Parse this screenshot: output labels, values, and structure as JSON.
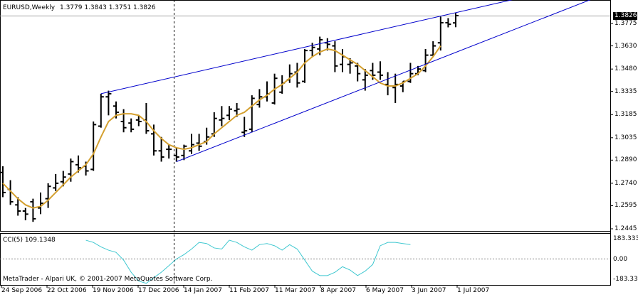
{
  "header": {
    "symbol_timeframe": "EURUSD,Weekly",
    "ohlc": "1.3779 1.3843 1.3751 1.3826"
  },
  "price_axis": {
    "last_price": "1.3826",
    "ticks": [
      "1.3775",
      "1.3630",
      "1.3480",
      "1.3335",
      "1.3185",
      "1.3035",
      "1.2890",
      "1.2740",
      "1.2595",
      "1.2445"
    ]
  },
  "indicator": {
    "label": "CCI(5) 109.1348",
    "ticks": [
      "183.333",
      "0.00",
      "-183.333"
    ]
  },
  "copyright": "MetaTrader - Alpari UK, © 2001-2007 MetaQuotes Software Corp.",
  "time_axis": {
    "labels": [
      "24 Sep 2006",
      "22 Oct 2006",
      "19 Nov 2006",
      "17 Dec 2006",
      "14 Jan 2007",
      "11 Feb 2007",
      "11 Mar 2007",
      "8 Apr 2007",
      "6 May 2007",
      "3 Jun 2007",
      "1 Jul 2007"
    ]
  },
  "colors": {
    "bars": "#000000",
    "moving_average": "#d4a030",
    "trendlines": "#0000cc",
    "cci_line": "#40c8d0",
    "grid_dash": "#808080"
  },
  "chart_data": {
    "type": "ohlc",
    "series": [
      {
        "values": [
          [
            1.281,
            1.285,
            1.265,
            1.268
          ],
          [
            1.27,
            1.276,
            1.26,
            1.262
          ],
          [
            1.26,
            1.265,
            1.253,
            1.256
          ],
          [
            1.256,
            1.258,
            1.25,
            1.254
          ],
          [
            1.262,
            1.264,
            1.249,
            1.251
          ],
          [
            1.258,
            1.268,
            1.254,
            1.261
          ],
          [
            1.264,
            1.274,
            1.258,
            1.272
          ],
          [
            1.271,
            1.28,
            1.269,
            1.274
          ],
          [
            1.275,
            1.282,
            1.272,
            1.278
          ],
          [
            1.28,
            1.29,
            1.275,
            1.288
          ],
          [
            1.286,
            1.292,
            1.281,
            1.284
          ],
          [
            1.285,
            1.288,
            1.279,
            1.282
          ],
          [
            1.283,
            1.314,
            1.282,
            1.312
          ],
          [
            1.311,
            1.332,
            1.31,
            1.33
          ],
          [
            1.33,
            1.334,
            1.318,
            1.332
          ],
          [
            1.324,
            1.327,
            1.316,
            1.32
          ],
          [
            1.314,
            1.322,
            1.307,
            1.31
          ],
          [
            1.313,
            1.316,
            1.307,
            1.309
          ],
          [
            1.315,
            1.318,
            1.311,
            1.314
          ],
          [
            1.315,
            1.326,
            1.306,
            1.308
          ],
          [
            1.306,
            1.312,
            1.292,
            1.295
          ],
          [
            1.295,
            1.304,
            1.288,
            1.291
          ],
          [
            1.296,
            1.299,
            1.29,
            1.296
          ],
          [
            1.292,
            1.297,
            1.288,
            1.291
          ],
          [
            1.292,
            1.299,
            1.289,
            1.298
          ],
          [
            1.295,
            1.306,
            1.293,
            1.299
          ],
          [
            1.3,
            1.306,
            1.295,
            1.298
          ],
          [
            1.301,
            1.31,
            1.299,
            1.304
          ],
          [
            1.306,
            1.32,
            1.304,
            1.316
          ],
          [
            1.315,
            1.324,
            1.311,
            1.316
          ],
          [
            1.318,
            1.324,
            1.315,
            1.322
          ],
          [
            1.321,
            1.326,
            1.317,
            1.322
          ],
          [
            1.307,
            1.317,
            1.304,
            1.308
          ],
          [
            1.309,
            1.331,
            1.307,
            1.329
          ],
          [
            1.325,
            1.335,
            1.323,
            1.33
          ],
          [
            1.33,
            1.34,
            1.327,
            1.332
          ],
          [
            1.326,
            1.345,
            1.325,
            1.342
          ],
          [
            1.333,
            1.344,
            1.332,
            1.339
          ],
          [
            1.341,
            1.351,
            1.339,
            1.345
          ],
          [
            1.346,
            1.352,
            1.336,
            1.339
          ],
          [
            1.34,
            1.361,
            1.339,
            1.36
          ],
          [
            1.36,
            1.365,
            1.356,
            1.362
          ],
          [
            1.361,
            1.369,
            1.357,
            1.367
          ],
          [
            1.365,
            1.368,
            1.36,
            1.364
          ],
          [
            1.363,
            1.366,
            1.346,
            1.35
          ],
          [
            1.351,
            1.361,
            1.346,
            1.356
          ],
          [
            1.351,
            1.355,
            1.345,
            1.352
          ],
          [
            1.35,
            1.352,
            1.34,
            1.345
          ],
          [
            1.341,
            1.348,
            1.334,
            1.344
          ],
          [
            1.347,
            1.352,
            1.341,
            1.344
          ],
          [
            1.346,
            1.353,
            1.341,
            1.344
          ],
          [
            1.338,
            1.346,
            1.331,
            1.337
          ],
          [
            1.336,
            1.345,
            1.326,
            1.338
          ],
          [
            1.337,
            1.34,
            1.333,
            1.34
          ],
          [
            1.34,
            1.352,
            1.339,
            1.345
          ],
          [
            1.345,
            1.35,
            1.344,
            1.348
          ],
          [
            1.347,
            1.361,
            1.346,
            1.357
          ],
          [
            1.357,
            1.366,
            1.357,
            1.363
          ],
          [
            1.365,
            1.382,
            1.36,
            1.378
          ],
          [
            1.378,
            1.381,
            1.375,
            1.377
          ],
          [
            1.3779,
            1.3843,
            1.3751,
            1.3826
          ]
        ]
      }
    ],
    "moving_average": [
      1.274,
      1.269,
      1.264,
      1.26,
      1.258,
      1.259,
      1.263,
      1.268,
      1.273,
      1.278,
      1.282,
      1.286,
      1.293,
      1.304,
      1.314,
      1.318,
      1.319,
      1.319,
      1.318,
      1.314,
      1.308,
      1.303,
      1.299,
      1.297,
      1.296,
      1.297,
      1.299,
      1.301,
      1.306,
      1.31,
      1.314,
      1.318,
      1.32,
      1.324,
      1.328,
      1.331,
      1.335,
      1.338,
      1.342,
      1.346,
      1.352,
      1.356,
      1.359,
      1.361,
      1.36,
      1.357,
      1.354,
      1.351,
      1.347,
      1.343,
      1.339,
      1.337,
      1.337,
      1.339,
      1.342,
      1.345,
      1.35,
      1.356,
      1.363
    ],
    "cci": [
      null,
      null,
      null,
      null,
      null,
      null,
      null,
      null,
      null,
      null,
      null,
      170,
      150,
      110,
      80,
      60,
      -10,
      -120,
      -200,
      -220,
      -170,
      -120,
      -60,
      0,
      40,
      90,
      150,
      140,
      100,
      90,
      170,
      150,
      110,
      80,
      130,
      140,
      120,
      80,
      130,
      90,
      -10,
      -110,
      -150,
      -150,
      -120,
      -70,
      -100,
      -150,
      -110,
      -50,
      120,
      150,
      150,
      140,
      130
    ],
    "price_range": [
      1.2445,
      1.3843
    ],
    "cci_range": [
      -183.333,
      183.333
    ],
    "trendlines": [
      {
        "from_bar": 13,
        "from_price": 1.332,
        "to_bar": 64,
        "to_price": 1.389
      },
      {
        "from_bar": 23,
        "from_price": 1.288,
        "to_bar": 69,
        "to_price": 1.376
      }
    ],
    "vertical_marker_date": "17 Dec 2006"
  }
}
